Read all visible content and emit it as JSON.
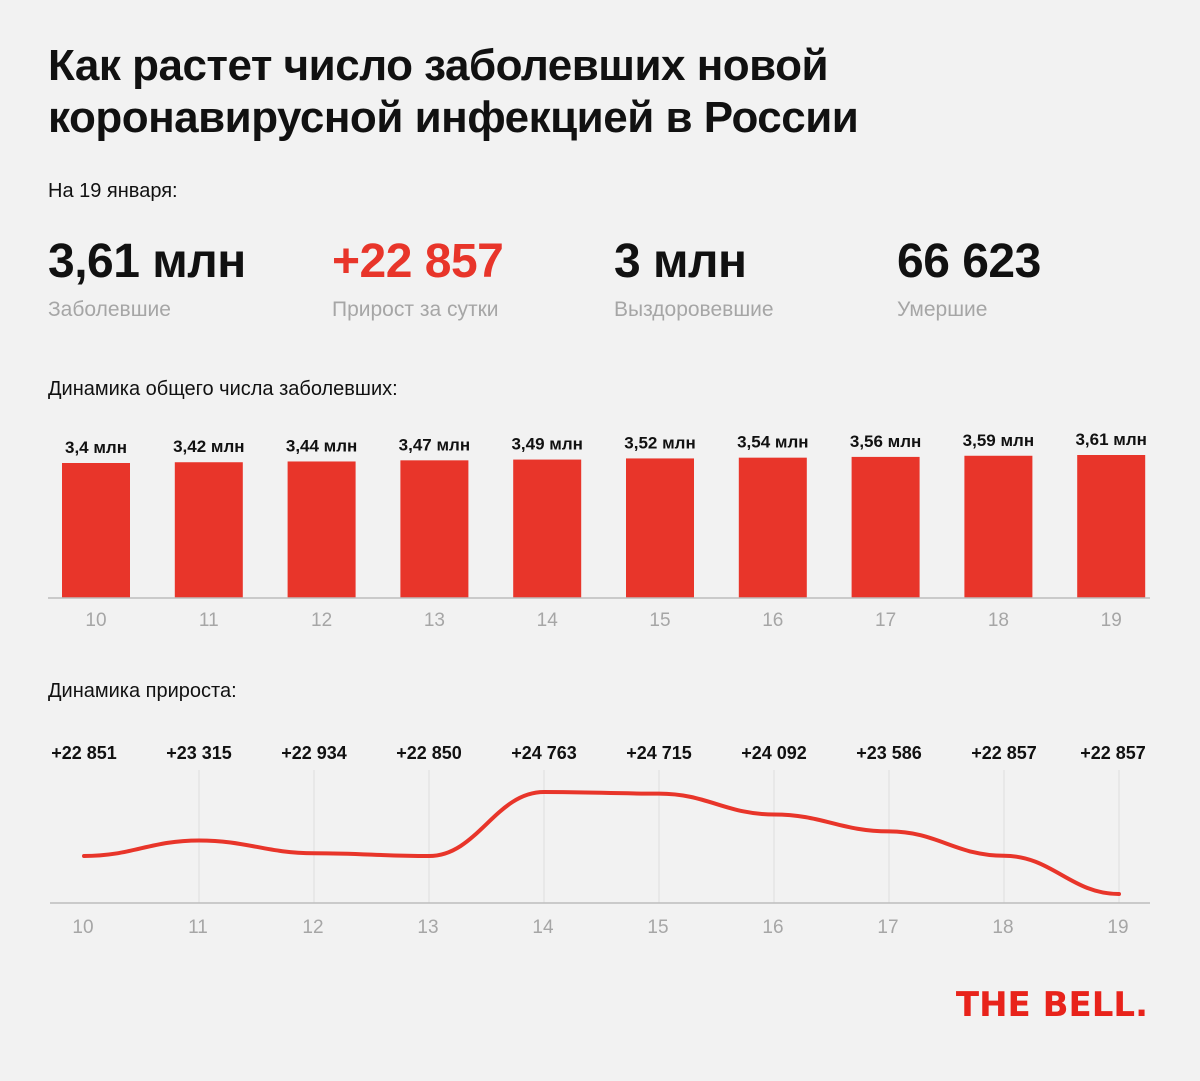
{
  "title": "Как растет число заболевших новой коронавирусной инфекцией в России",
  "date_label": "На 19 января:",
  "stats": [
    {
      "value": "3,61 млн",
      "label": "Заболевшие"
    },
    {
      "value": "+22 857",
      "label": "Прирост за сутки"
    },
    {
      "value": "3 млн",
      "label": "Выздоровевшие"
    },
    {
      "value": "66 623",
      "label": "Умершие"
    }
  ],
  "colors": {
    "accent": "#e8352a",
    "muted": "#a6a6a6",
    "background": "#f2f2f2"
  },
  "logo": "THE BELL.",
  "chart_data": [
    {
      "type": "bar",
      "title": "Динамика общего числа заболевших:",
      "categories": [
        "10",
        "11",
        "12",
        "13",
        "14",
        "15",
        "16",
        "17",
        "18",
        "19"
      ],
      "values": [
        3.4,
        3.42,
        3.44,
        3.47,
        3.49,
        3.52,
        3.54,
        3.56,
        3.59,
        3.61
      ],
      "data_labels": [
        "3,4 млн",
        "3,42 млн",
        "3,44 млн",
        "3,47 млн",
        "3,49 млн",
        "3,52 млн",
        "3,54 млн",
        "3,56 млн",
        "3,59 млн",
        "3,61 млн"
      ],
      "grid": false
    },
    {
      "type": "line",
      "title": "Динамика прироста:",
      "x": [
        "10",
        "11",
        "12",
        "13",
        "14",
        "15",
        "16",
        "17",
        "18",
        "19"
      ],
      "values": [
        22851,
        23315,
        22934,
        22850,
        24763,
        24715,
        24092,
        23586,
        22857,
        22857
      ],
      "data_labels": [
        "+22 851",
        "+23 315",
        "+22 934",
        "+22 850",
        "+24 763",
        "+24 715",
        "+24 092",
        "+23 586",
        "+22 857",
        "+22 857"
      ],
      "grid": true
    }
  ]
}
